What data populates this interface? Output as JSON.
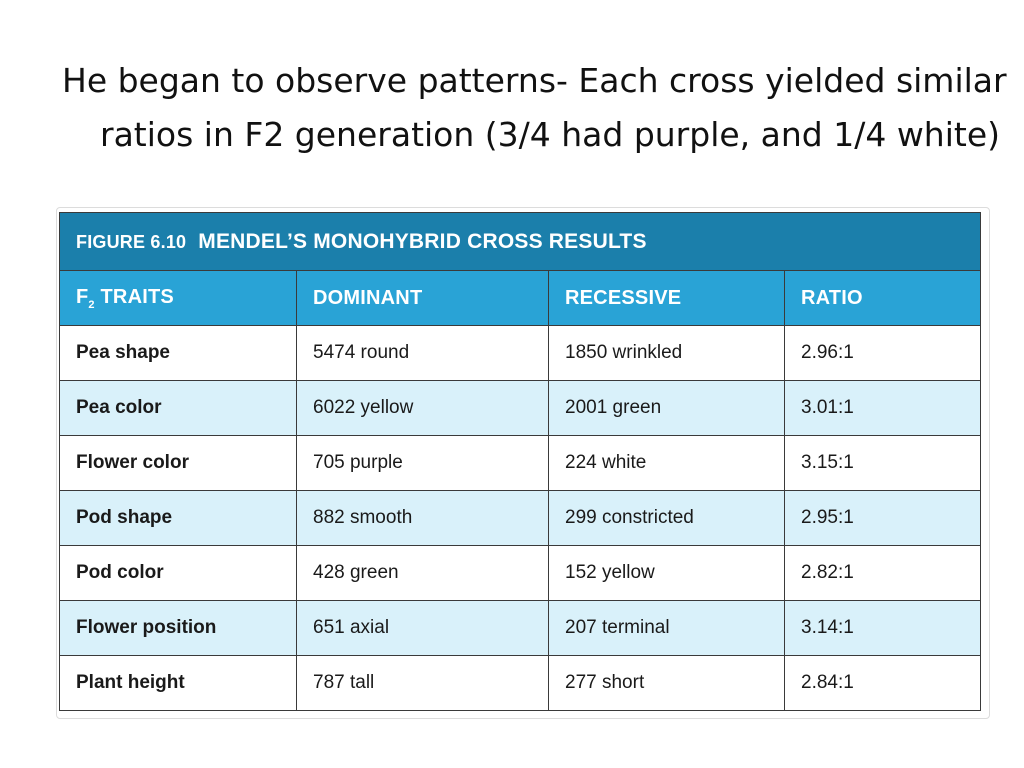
{
  "slide": {
    "bullet_text": "He began to observe patterns- Each cross yielded similar ratios in F2 generation (3/4 had purple, and 1/4 white)"
  },
  "table": {
    "figure_label": "FIGURE 6.10",
    "figure_title": "MENDEL’S MONOHYBRID CROSS RESULTS",
    "headers": {
      "traits_prefix": "F",
      "traits_subscript": "2",
      "traits_suffix": " TRAITS",
      "dominant": "DOMINANT",
      "recessive": "RECESSIVE",
      "ratio": "RATIO"
    },
    "rows": [
      {
        "trait": "Pea shape",
        "dominant": "5474 round",
        "recessive": "1850 wrinkled",
        "ratio": "2.96:1"
      },
      {
        "trait": "Pea color",
        "dominant": "6022 yellow",
        "recessive": "2001 green",
        "ratio": "3.01:1"
      },
      {
        "trait": "Flower color",
        "dominant": "705 purple",
        "recessive": "224 white",
        "ratio": "3.15:1"
      },
      {
        "trait": "Pod shape",
        "dominant": "882 smooth",
        "recessive": "299 constricted",
        "ratio": "2.95:1"
      },
      {
        "trait": "Pod color",
        "dominant": "428 green",
        "recessive": "152 yellow",
        "ratio": "2.82:1"
      },
      {
        "trait": "Flower position",
        "dominant": "651 axial",
        "recessive": "207 terminal",
        "ratio": "3.14:1"
      },
      {
        "trait": "Plant height",
        "dominant": "787 tall",
        "recessive": "277 short",
        "ratio": "2.84:1"
      }
    ]
  },
  "colors": {
    "title_bar": "#1b7fab",
    "header_bar": "#29a3d6",
    "shaded_row": "#d9f1fa"
  }
}
